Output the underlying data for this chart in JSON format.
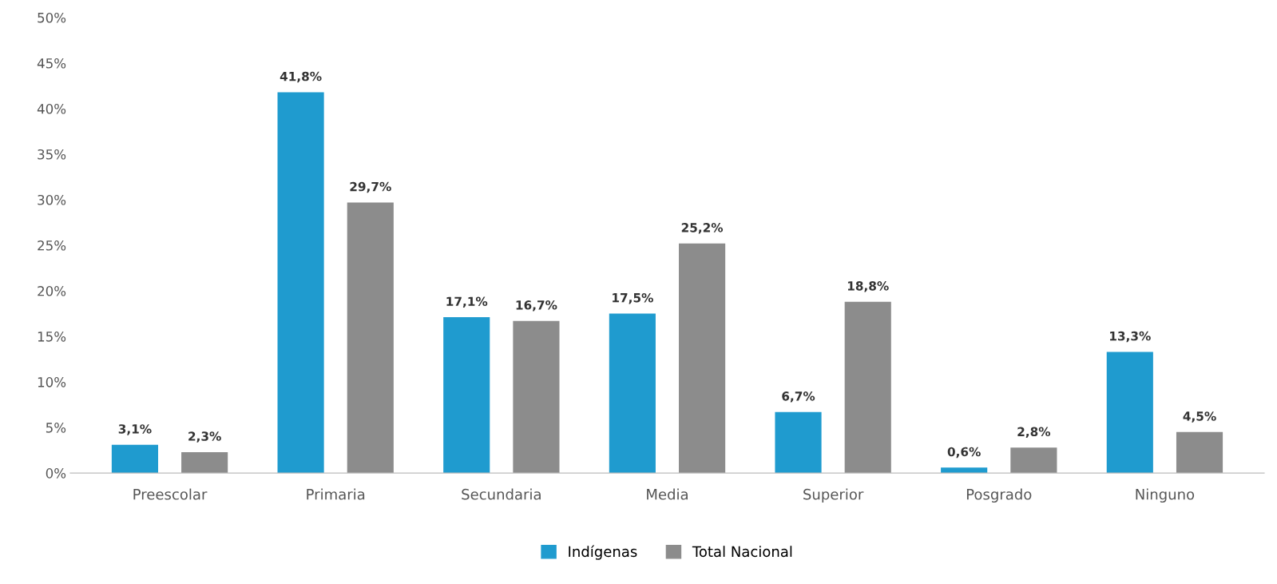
{
  "chart_data": {
    "type": "bar",
    "categories": [
      "Preescolar",
      "Primaria",
      "Secundaria",
      "Media",
      "Superior",
      "Posgrado",
      "Ninguno"
    ],
    "series": [
      {
        "name": "Indígenas",
        "color": "#1f9bcf",
        "values": [
          3.1,
          41.8,
          17.1,
          17.5,
          6.7,
          0.6,
          13.3
        ],
        "value_labels": [
          "3,1%",
          "41,8%",
          "17,1%",
          "17,5%",
          "6,7%",
          "0,6%",
          "13,3%"
        ]
      },
      {
        "name": "Total Nacional",
        "color": "#8c8c8c",
        "values": [
          2.3,
          29.7,
          16.7,
          25.2,
          18.8,
          2.8,
          4.5
        ],
        "value_labels": [
          "2,3%",
          "29,7%",
          "16,7%",
          "25,2%",
          "18,8%",
          "2,8%",
          "4,5%"
        ]
      }
    ],
    "ylim": [
      0,
      50
    ],
    "yticks": [
      {
        "value": 0,
        "label": "0%"
      },
      {
        "value": 5,
        "label": "5%"
      },
      {
        "value": 10,
        "label": "10%"
      },
      {
        "value": 15,
        "label": "15%"
      },
      {
        "value": 20,
        "label": "20%"
      },
      {
        "value": 25,
        "label": "25%"
      },
      {
        "value": 30,
        "label": "30%"
      },
      {
        "value": 35,
        "label": "35%"
      },
      {
        "value": 40,
        "label": "40%"
      },
      {
        "value": 45,
        "label": "45%"
      },
      {
        "value": 50,
        "label": "50%"
      }
    ],
    "grid": false,
    "legend": "bottom"
  }
}
